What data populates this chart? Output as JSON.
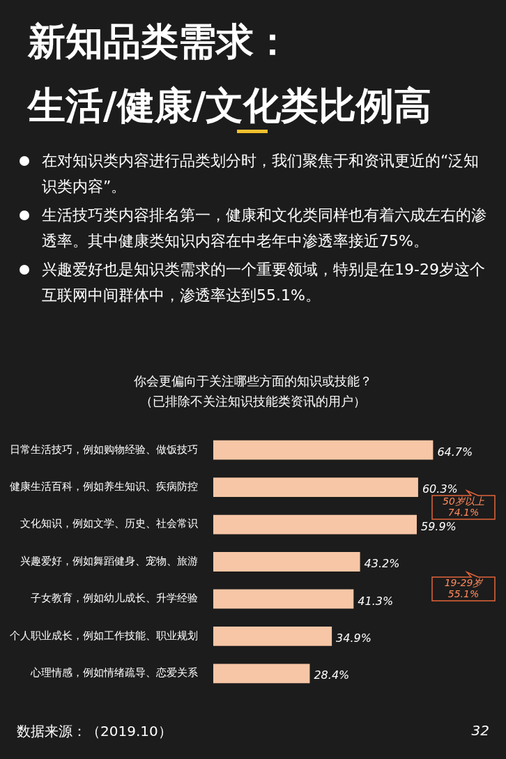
{
  "chart_data": {
    "type": "bar",
    "orientation": "horizontal",
    "title": "新知品类需求：生活/健康/文化类比例高",
    "subtitle": "你会更偏向于关注哪些方面的知识或技能？（已排除不关注知识技能类资讯的用户）",
    "categories": [
      "日常生活技巧，例如购物经验、做饭技巧",
      "健康生活百科，例如养生知识、疾病防控",
      "文化知识，例如文学、历史、社会常识",
      "兴趣爱好，例如舞蹈健身、宠物、旅游",
      "子女教育，例如幼儿成长、升学经验",
      "个人职业成长，例如工作技能、职业规划",
      "心理情感，例如情绪疏导、恋爱关系"
    ],
    "values": [
      64.7,
      60.3,
      59.9,
      43.2,
      41.3,
      34.9,
      28.4
    ],
    "color": "#f7c6a6",
    "data_labels": true,
    "value_labels": [
      "64.7%",
      "60.3%",
      "59.9%",
      "43.2%",
      "41.3%",
      "34.9%",
      "28.4%"
    ],
    "tick_labels": "y",
    "grid": false,
    "legend": false,
    "annotations": [
      "在对知识类内容进行品类划分时，我们聚焦于和资讯更近的“泛知识类内容”。",
      "生活技巧类内容排名第一，健康和文化类同样也有着六成左右的渗透率。其中健康类知识内容在中老年中渗透率接近75%。",
      "兴趣爱好也是知识类需求的一个重要领域，特别是在19-29岁这个互联网中间群体中，渗透率达到55.1%。",
      "50岁以上 74.1%",
      "19-29岁 55.1%",
      "数据来源：（2019.10）",
      "32"
    ]
  }
}
